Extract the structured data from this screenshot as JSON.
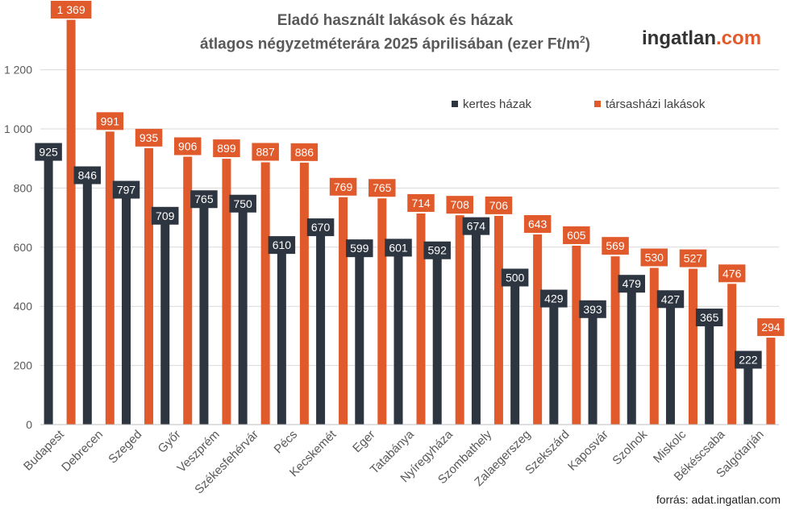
{
  "chart_data": {
    "type": "bar",
    "title_line1": "Eladó használt lakások és házak",
    "title_line2_pre": "átlagos négyzetméterára 2025 áprilisában (ezer Ft/m",
    "title_line2_sup": "2",
    "title_line2_post": ")",
    "categories": [
      "Budapest",
      "Debrecen",
      "Szeged",
      "Győr",
      "Veszprém",
      "Székesfehérvár",
      "Pécs",
      "Kecskemét",
      "Eger",
      "Tatabánya",
      "Nyíregyháza",
      "Szombathely",
      "Zalaegerszeg",
      "Szekszárd",
      "Kaposvár",
      "Szolnok",
      "Miskolc",
      "Békéscsaba",
      "Salgótarján"
    ],
    "series": [
      {
        "name": "kertes házak",
        "color": "#2d3540",
        "values": [
          925,
          846,
          797,
          709,
          765,
          750,
          610,
          670,
          599,
          601,
          592,
          674,
          500,
          429,
          393,
          479,
          427,
          365,
          222
        ],
        "labels": [
          "925",
          "846",
          "797",
          "709",
          "765",
          "750",
          "610",
          "670",
          "599",
          "601",
          "592",
          "674",
          "500",
          "429",
          "393",
          "479",
          "427",
          "365",
          "222"
        ]
      },
      {
        "name": "társasházi lakások",
        "color": "#e05a2b",
        "values": [
          1369,
          991,
          935,
          906,
          899,
          887,
          886,
          769,
          765,
          714,
          708,
          706,
          643,
          605,
          569,
          530,
          527,
          476,
          294
        ],
        "labels": [
          "1 369",
          "991",
          "935",
          "906",
          "899",
          "887",
          "886",
          "769",
          "765",
          "714",
          "708",
          "706",
          "643",
          "605",
          "569",
          "530",
          "527",
          "476",
          "294"
        ]
      }
    ],
    "ylim": [
      0,
      1400
    ],
    "yticks": [
      0,
      200,
      400,
      600,
      800,
      1000,
      1200
    ],
    "ytick_labels": [
      "0",
      "200",
      "400",
      "600",
      "800",
      "1 000",
      "1 200"
    ],
    "grid": true,
    "legend": "top-right"
  },
  "logo": {
    "main": "ingatlan",
    "accent": ".com"
  },
  "source": "forrás: adat.ingatlan.com"
}
